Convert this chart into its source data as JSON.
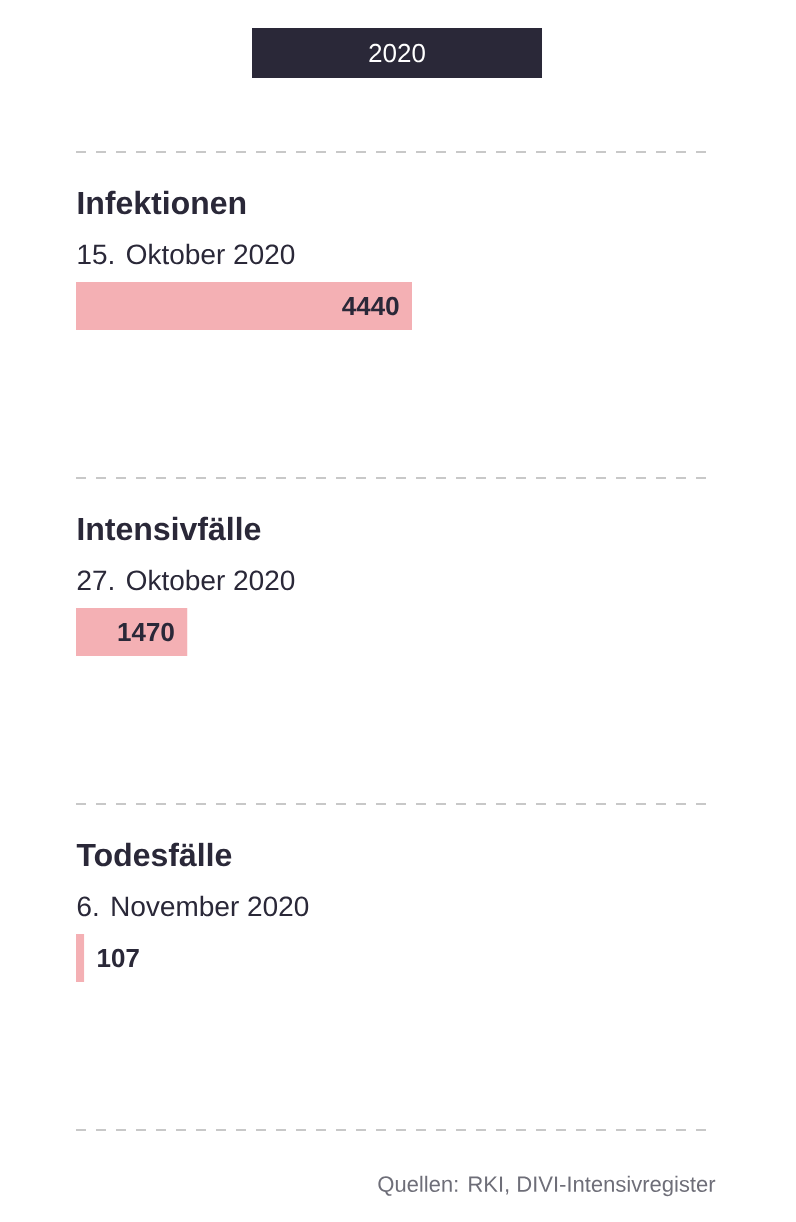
{
  "chart_data": {
    "type": "bar",
    "orientation": "horizontal",
    "title": "2020",
    "categories": [
      "Infektionen",
      "Intensivfälle",
      "Todesfälle"
    ],
    "values": [
      4440,
      1470,
      107
    ],
    "color": "#f4b0b4",
    "data_labels": true,
    "annotations": [
      "15. Oktober 2020",
      "27. Oktober 2020",
      "6. November 2020",
      "Quellen: RKI, DIVI-Intensivregister"
    ]
  }
}
